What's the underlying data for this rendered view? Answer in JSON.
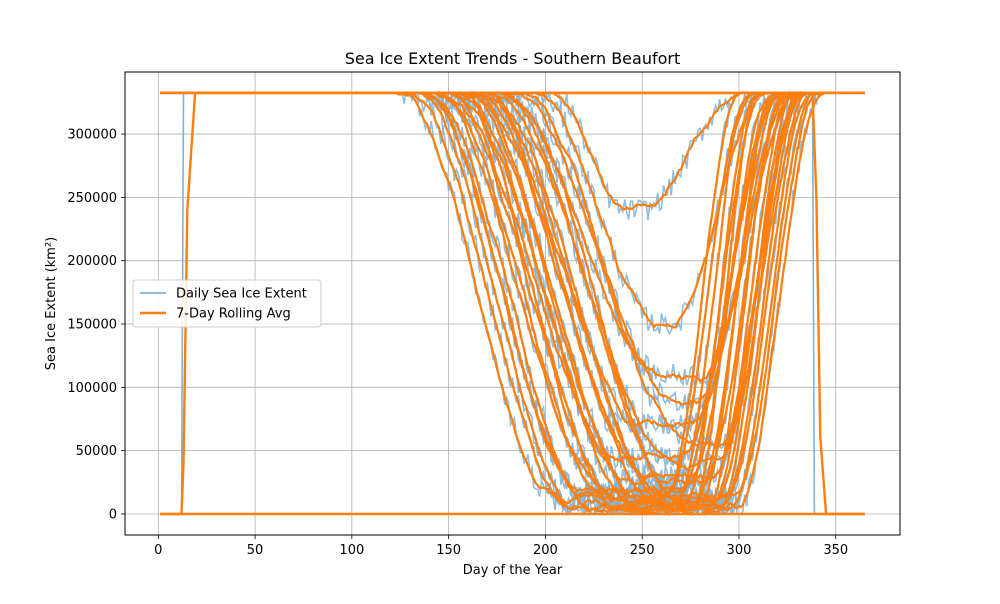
{
  "chart_data": {
    "type": "line",
    "title": "Sea Ice Extent Trends - Southern Beaufort",
    "xlabel": "Day of the Year",
    "ylabel": "Sea Ice Extent (km²)",
    "xlim": [
      -17.2,
      383.2
    ],
    "ylim": [
      -16600,
      349000
    ],
    "xticks": [
      0,
      50,
      100,
      150,
      200,
      250,
      300,
      350
    ],
    "yticks": [
      0,
      50000,
      100000,
      150000,
      200000,
      250000,
      300000
    ],
    "grid": true,
    "legend_position": "center-left",
    "max_extent": 332500,
    "series": [
      {
        "name": "Daily Sea Ice Extent",
        "color": "#7fb2d7",
        "style": "thin"
      },
      {
        "name": "7-Day Rolling Avg",
        "color": "#ff7f0e",
        "style": "thick"
      }
    ],
    "seasons": [
      {
        "melt_start": 126,
        "melt_end": 205,
        "min": 12000,
        "freeze_start": 262,
        "freeze_end": 300
      },
      {
        "melt_start": 130,
        "melt_end": 212,
        "min": 8000,
        "freeze_start": 268,
        "freeze_end": 305
      },
      {
        "melt_start": 134,
        "melt_end": 216,
        "min": 5000,
        "freeze_start": 272,
        "freeze_end": 308
      },
      {
        "melt_start": 137,
        "melt_end": 220,
        "min": 15000,
        "freeze_start": 270,
        "freeze_end": 312
      },
      {
        "melt_start": 140,
        "melt_end": 225,
        "min": 3000,
        "freeze_start": 276,
        "freeze_end": 310
      },
      {
        "melt_start": 143,
        "melt_end": 230,
        "min": 20000,
        "freeze_start": 274,
        "freeze_end": 316
      },
      {
        "melt_start": 145,
        "melt_end": 234,
        "min": 6000,
        "freeze_start": 280,
        "freeze_end": 318
      },
      {
        "melt_start": 148,
        "melt_end": 238,
        "min": 10000,
        "freeze_start": 278,
        "freeze_end": 320
      },
      {
        "melt_start": 150,
        "melt_end": 240,
        "min": 2000,
        "freeze_start": 284,
        "freeze_end": 322
      },
      {
        "melt_start": 153,
        "melt_end": 244,
        "min": 25000,
        "freeze_start": 282,
        "freeze_end": 324
      },
      {
        "melt_start": 155,
        "melt_end": 247,
        "min": 4000,
        "freeze_start": 286,
        "freeze_end": 326
      },
      {
        "melt_start": 158,
        "melt_end": 250,
        "min": 9000,
        "freeze_start": 288,
        "freeze_end": 328
      },
      {
        "melt_start": 160,
        "melt_end": 252,
        "min": 1000,
        "freeze_start": 290,
        "freeze_end": 330
      },
      {
        "melt_start": 162,
        "melt_end": 255,
        "min": 30000,
        "freeze_start": 286,
        "freeze_end": 332
      },
      {
        "melt_start": 165,
        "melt_end": 258,
        "min": 7000,
        "freeze_start": 292,
        "freeze_end": 334
      },
      {
        "melt_start": 168,
        "melt_end": 262,
        "min": 14000,
        "freeze_start": 294,
        "freeze_end": 336
      },
      {
        "melt_start": 170,
        "melt_end": 265,
        "min": 3000,
        "freeze_start": 296,
        "freeze_end": 338
      },
      {
        "melt_start": 173,
        "melt_end": 268,
        "min": 40000,
        "freeze_start": 290,
        "freeze_end": 334
      },
      {
        "melt_start": 176,
        "melt_end": 270,
        "min": 12000,
        "freeze_start": 298,
        "freeze_end": 340
      },
      {
        "melt_start": 180,
        "melt_end": 272,
        "min": 6000,
        "freeze_start": 300,
        "freeze_end": 342
      },
      {
        "melt_start": 185,
        "melt_end": 275,
        "min": 55000,
        "freeze_start": 292,
        "freeze_end": 330
      },
      {
        "melt_start": 190,
        "melt_end": 265,
        "min": 90000,
        "freeze_start": 280,
        "freeze_end": 318
      },
      {
        "melt_start": 196,
        "melt_end": 258,
        "min": 150000,
        "freeze_start": 266,
        "freeze_end": 312
      },
      {
        "melt_start": 205,
        "melt_end": 240,
        "min": 240000,
        "freeze_start": 250,
        "freeze_end": 300
      },
      {
        "melt_start": 138,
        "melt_end": 218,
        "min": 18000,
        "freeze_start": 264,
        "freeze_end": 304
      },
      {
        "melt_start": 152,
        "melt_end": 236,
        "min": 45000,
        "freeze_start": 270,
        "freeze_end": 322
      },
      {
        "melt_start": 166,
        "melt_end": 250,
        "min": 70000,
        "freeze_start": 276,
        "freeze_end": 326
      },
      {
        "melt_start": 178,
        "melt_end": 260,
        "min": 110000,
        "freeze_start": 282,
        "freeze_end": 328
      }
    ],
    "edge_series": [
      {
        "kind": "flat-top"
      },
      {
        "kind": "flat-zero"
      },
      {
        "kind": "early-rise",
        "rise_start": 12,
        "rise_end": 19
      },
      {
        "kind": "late-drop",
        "drop_start": 338,
        "drop_end": 345
      }
    ]
  }
}
